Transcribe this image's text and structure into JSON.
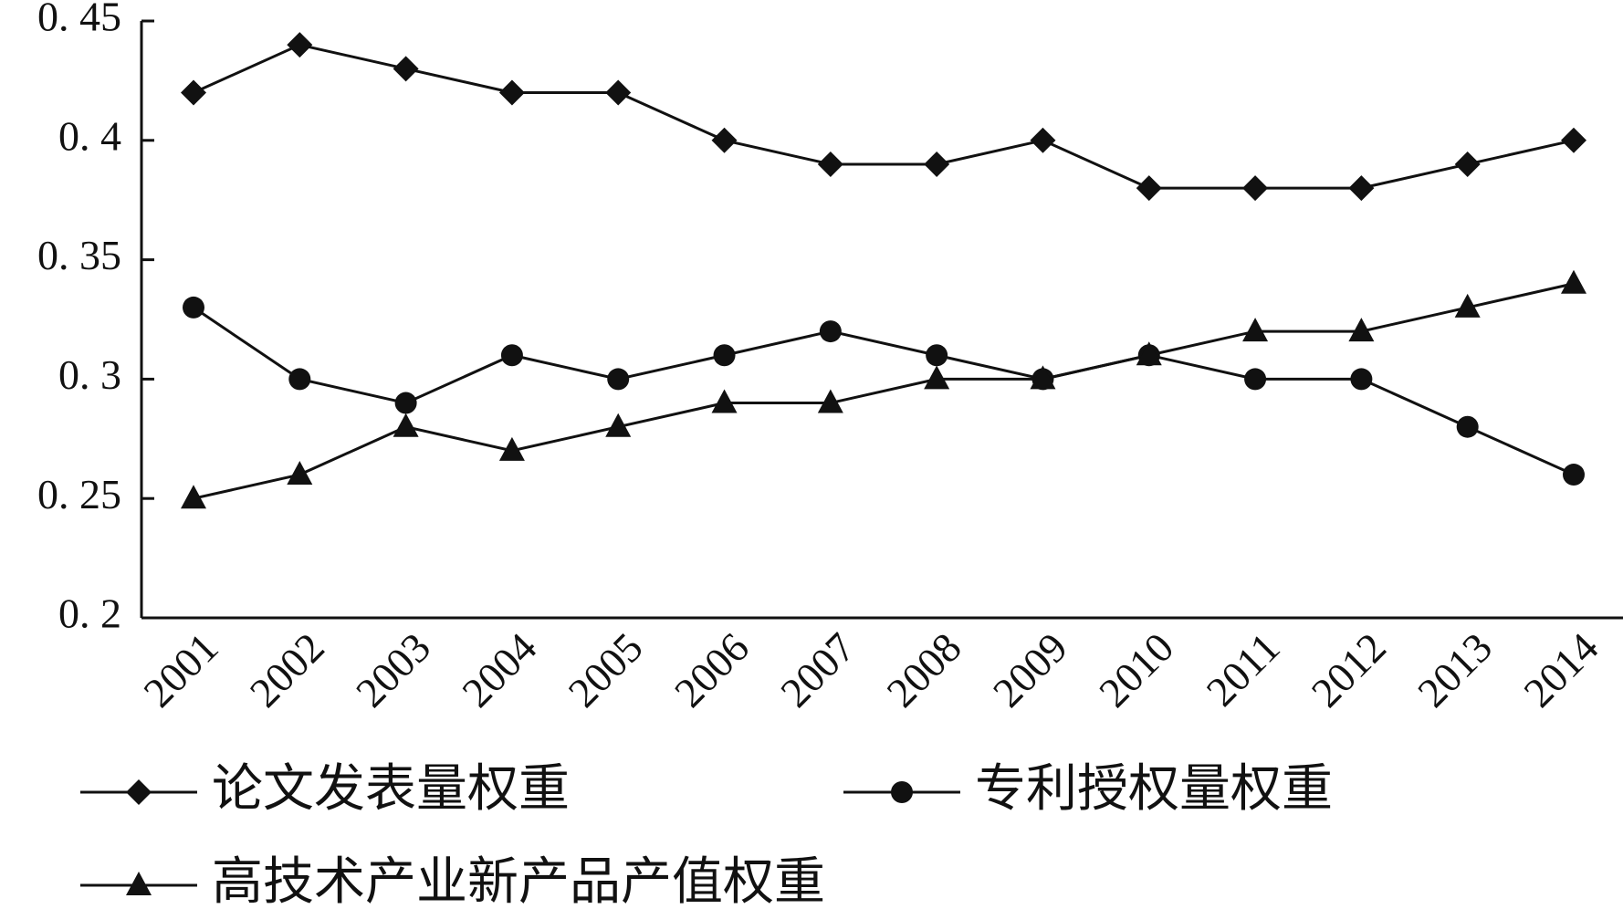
{
  "chart_data": {
    "type": "line",
    "categories": [
      "2001",
      "2002",
      "2003",
      "2004",
      "2005",
      "2006",
      "2007",
      "2008",
      "2009",
      "2010",
      "2011",
      "2012",
      "2013",
      "2014"
    ],
    "series": [
      {
        "name": "论文发表量权重",
        "color": "#111111",
        "marker": "diamond",
        "values": [
          0.42,
          0.44,
          0.43,
          0.42,
          0.42,
          0.4,
          0.39,
          0.39,
          0.4,
          0.38,
          0.38,
          0.38,
          0.39,
          0.4
        ]
      },
      {
        "name": "专利授权量权重",
        "color": "#111111",
        "marker": "circle",
        "values": [
          0.33,
          0.3,
          0.29,
          0.31,
          0.3,
          0.31,
          0.32,
          0.31,
          0.3,
          0.31,
          0.3,
          0.3,
          0.28,
          0.26
        ]
      },
      {
        "name": "高技术产业新产品产值权重",
        "color": "#111111",
        "marker": "triangle",
        "values": [
          0.25,
          0.26,
          0.28,
          0.27,
          0.28,
          0.29,
          0.29,
          0.3,
          0.3,
          0.31,
          0.32,
          0.32,
          0.33,
          0.34
        ]
      }
    ],
    "ylim": [
      0.2,
      0.45
    ],
    "yticks": [
      {
        "value": 0.45,
        "label": "0. 45"
      },
      {
        "value": 0.4,
        "label": "0. 4"
      },
      {
        "value": 0.35,
        "label": "0. 35"
      },
      {
        "value": 0.3,
        "label": "0. 3"
      },
      {
        "value": 0.25,
        "label": "0. 25"
      },
      {
        "value": 0.2,
        "label": "0. 2"
      }
    ],
    "grid": false
  }
}
